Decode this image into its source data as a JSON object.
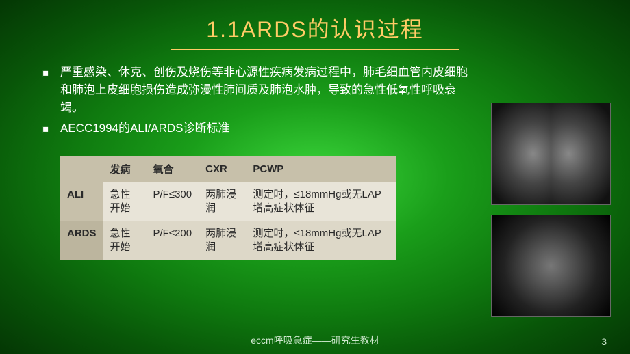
{
  "slide": {
    "title": "1.1ARDS的认识过程",
    "title_color": "#ffcc66",
    "title_fontsize": 32
  },
  "bullets": [
    "严重感染、休克、创伤及烧伤等非心源性疾病发病过程中，肺毛细血管内皮细胞和肺泡上皮细胞损伤造成弥漫性肺间质及肺泡水肿，导致的急性低氧性呼吸衰竭。",
    "AECC1994的ALI/ARDS诊断标准"
  ],
  "bullet_marker": "▣",
  "table": {
    "columns": [
      "",
      "发病",
      "氧合",
      "CXR",
      "PCWP"
    ],
    "rows": [
      [
        "ALI",
        "急性开始",
        "P/F≤300",
        "两肺浸润",
        "测定时，≤18mmHg或无LAP增高症状体征"
      ],
      [
        "ARDS",
        "急性开始",
        "P/F≤200",
        "两肺浸润",
        "测定时，≤18mmHg或无LAP增高症状体征"
      ]
    ],
    "header_bg": "#c7c0aa",
    "row_bg": "#e8e4d8",
    "row_alt_bg": "#ddd8c8",
    "text_color": "#2a2a2a",
    "fontsize": 15
  },
  "images": [
    {
      "name": "chest-xray",
      "alt": "胸部X光"
    },
    {
      "name": "chest-ct",
      "alt": "胸部CT"
    }
  ],
  "footer": {
    "text": "eccm呼吸急症——研究生教材",
    "page": "3",
    "color": "#cfe8cf",
    "fontsize": 14
  },
  "background": {
    "gradient_center": "#3bd63b",
    "gradient_edge": "#043704"
  }
}
